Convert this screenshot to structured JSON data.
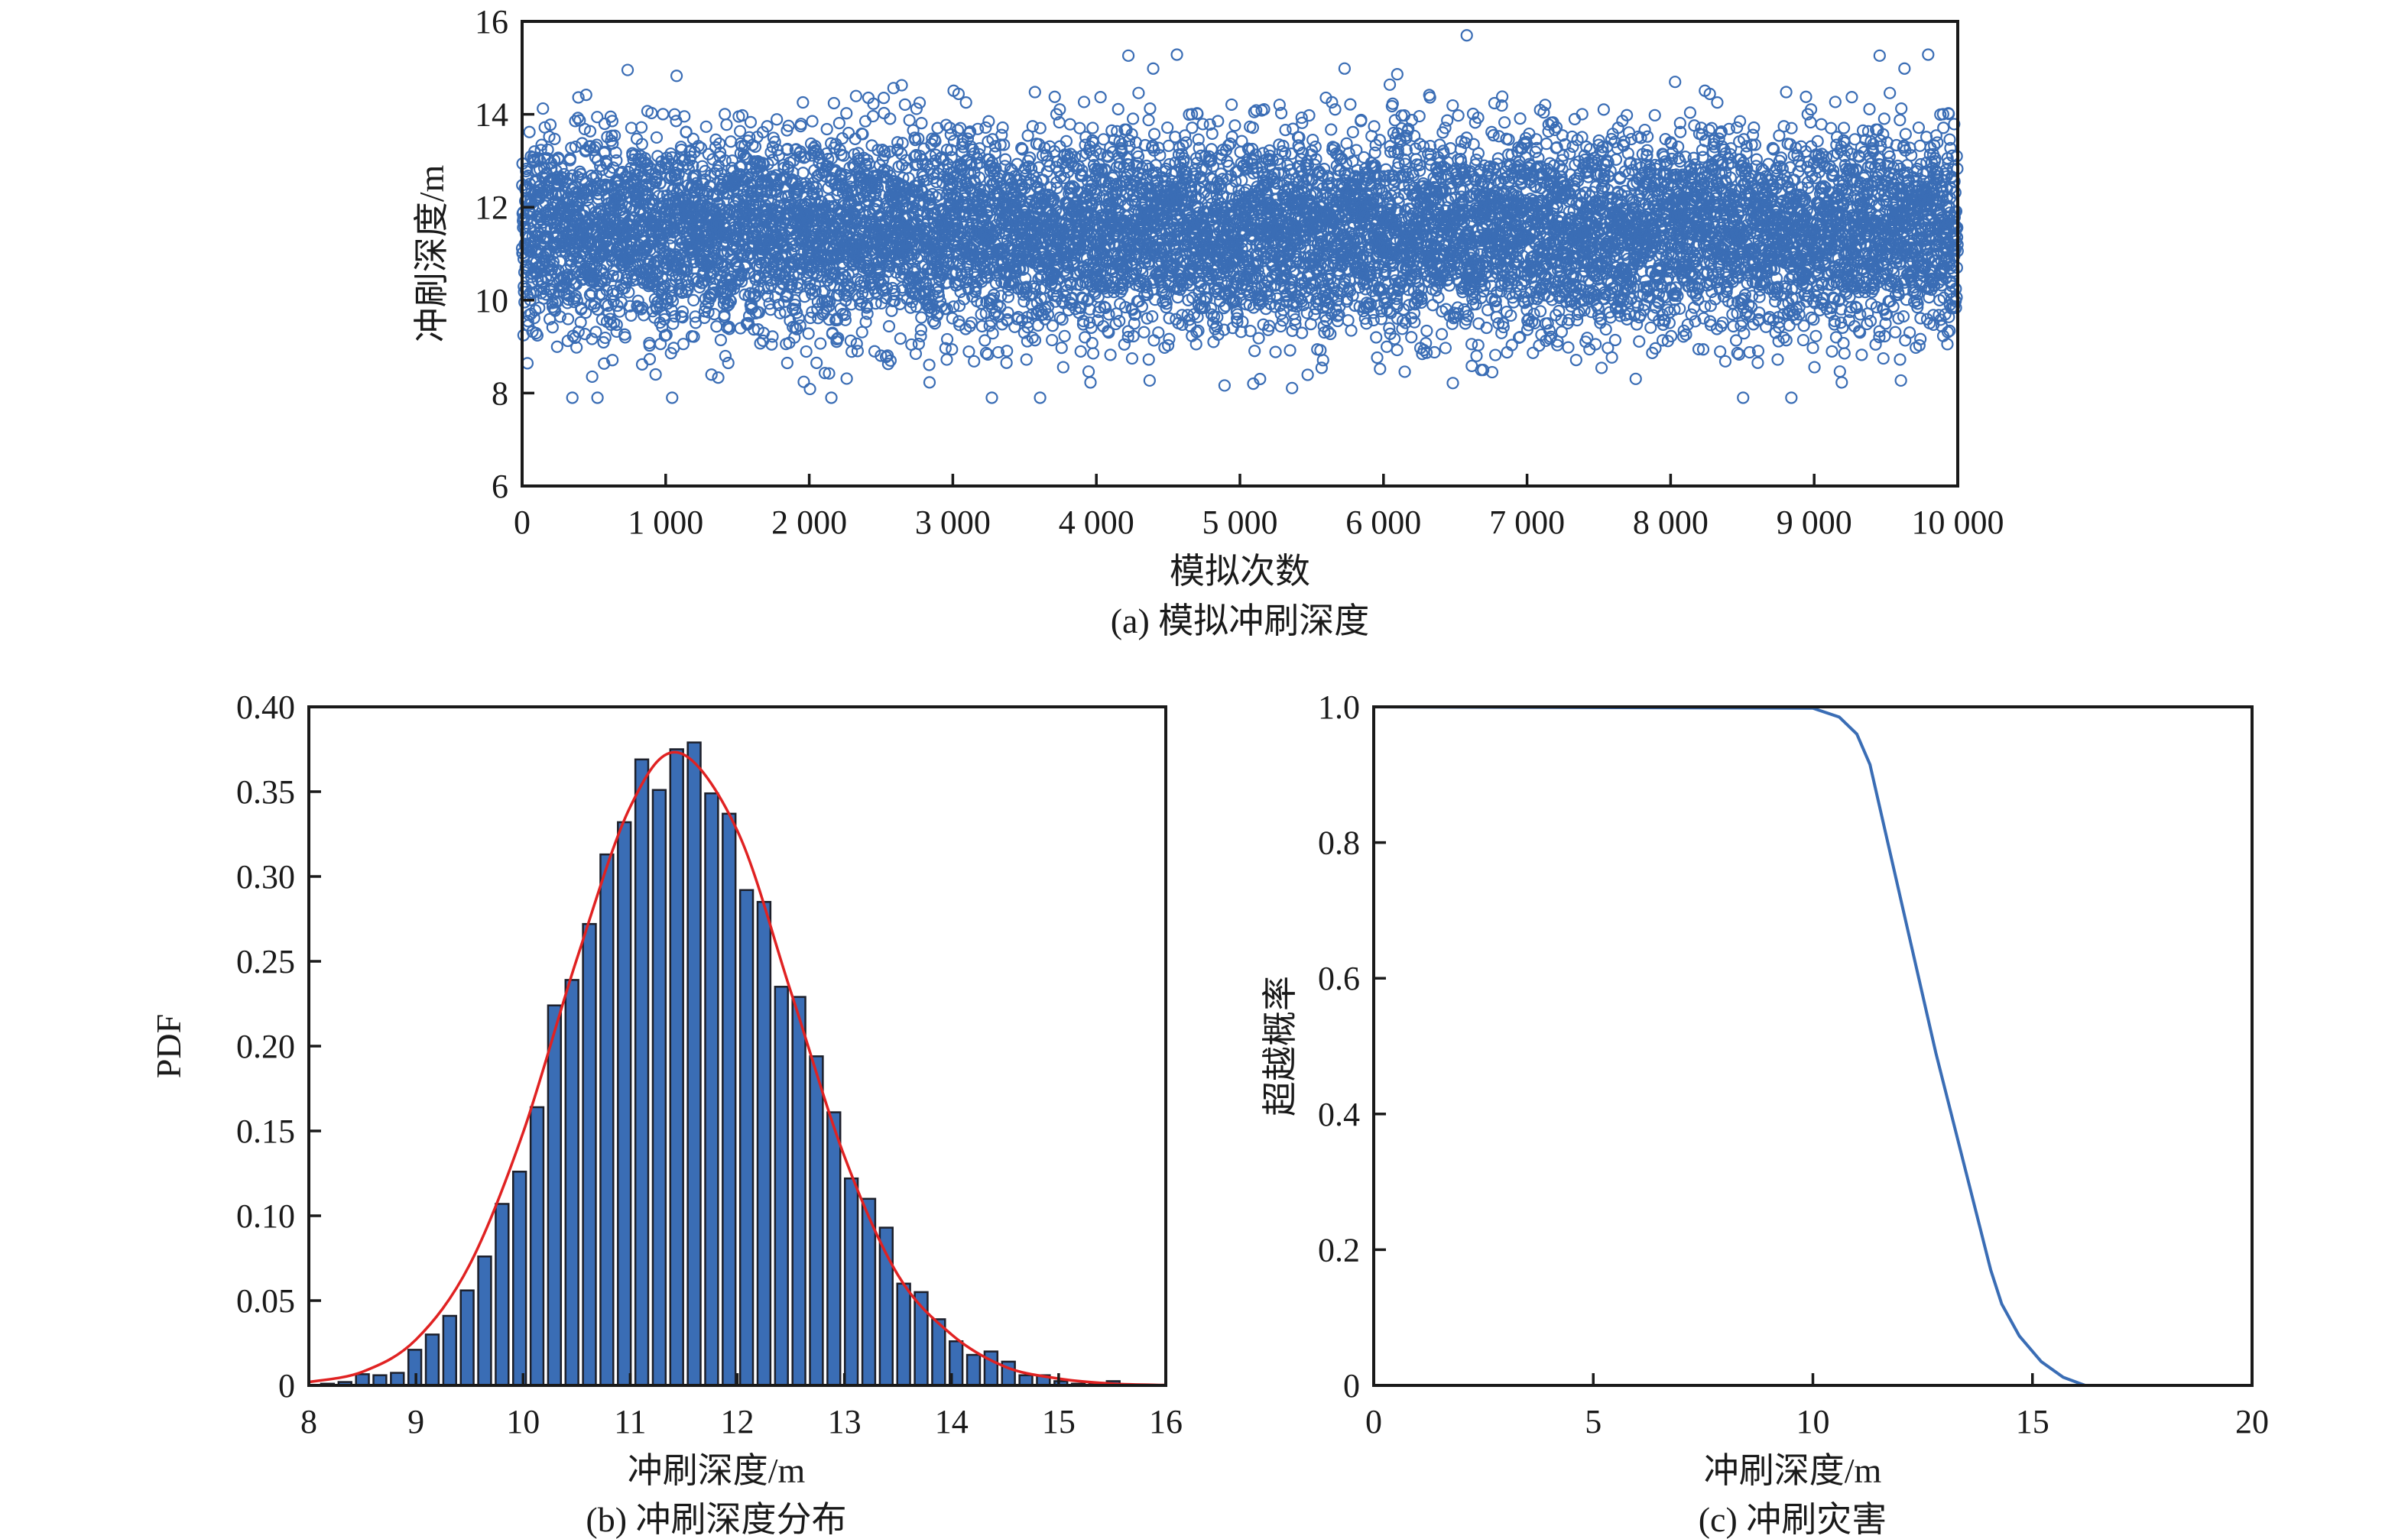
{
  "chart_data": [
    {
      "type": "scatter",
      "caption": "(a) 模拟冲刷深度",
      "xlabel": "模拟次数",
      "ylabel": "冲刷深度/m",
      "xlim": [
        0,
        10000
      ],
      "ylim": [
        6,
        16
      ],
      "xticks": [
        "0",
        "1 000",
        "2 000",
        "3 000",
        "4 000",
        "5 000",
        "6 000",
        "7 000",
        "8 000",
        "9 000",
        "10 000"
      ],
      "xtick_values": [
        0,
        1000,
        2000,
        3000,
        4000,
        5000,
        6000,
        7000,
        8000,
        9000,
        10000
      ],
      "yticks": [
        "6",
        "8",
        "10",
        "12",
        "14",
        "16"
      ],
      "ytick_values": [
        6,
        8,
        10,
        12,
        14,
        16
      ],
      "marker": "open-circle",
      "color": "#3a6db5",
      "n_points": 10000,
      "sample_distribution": {
        "mean": 11.45,
        "std": 1.07,
        "min": 7.9,
        "max": 15.7
      },
      "grid": false
    },
    {
      "type": "bar",
      "caption": "(b) 冲刷深度分布",
      "xlabel": "冲刷深度/m",
      "ylabel": "PDF",
      "xlim": [
        8,
        16
      ],
      "ylim": [
        0,
        0.4
      ],
      "xticks": [
        "8",
        "9",
        "10",
        "11",
        "12",
        "13",
        "14",
        "15",
        "16"
      ],
      "xtick_values": [
        8,
        9,
        10,
        11,
        12,
        13,
        14,
        15,
        16
      ],
      "yticks": [
        "0",
        "0.05",
        "0.10",
        "0.15",
        "0.20",
        "0.25",
        "0.30",
        "0.35",
        "0.40"
      ],
      "ytick_values": [
        0,
        0.05,
        0.1,
        0.15,
        0.2,
        0.25,
        0.3,
        0.35,
        0.4
      ],
      "bin_start": 8.1,
      "bin_width": 0.163,
      "values": [
        0.001,
        0.002,
        0.0066,
        0.006,
        0.0074,
        0.021,
        0.03,
        0.041,
        0.056,
        0.076,
        0.107,
        0.126,
        0.164,
        0.224,
        0.239,
        0.272,
        0.313,
        0.332,
        0.369,
        0.351,
        0.375,
        0.379,
        0.349,
        0.337,
        0.292,
        0.285,
        0.235,
        0.229,
        0.194,
        0.161,
        0.122,
        0.11,
        0.093,
        0.06,
        0.055,
        0.039,
        0.026,
        0.018,
        0.02,
        0.014,
        0.006,
        0.006,
        0.0025,
        0.001,
        0.001,
        0.0025
      ],
      "bar_color": "#3a6db5",
      "fit_curve": {
        "color": "#e02222",
        "x": [
          8,
          8.5,
          9,
          9.5,
          10,
          10.5,
          11,
          11.45,
          12,
          12.5,
          13,
          13.5,
          14,
          14.5,
          15,
          15.5,
          16
        ],
        "y": [
          0.002,
          0.008,
          0.027,
          0.071,
          0.149,
          0.251,
          0.341,
          0.373,
          0.327,
          0.232,
          0.135,
          0.065,
          0.03,
          0.011,
          0.004,
          0.001,
          0.0002
        ]
      },
      "grid": false
    },
    {
      "type": "line",
      "caption": "(c) 冲刷灾害",
      "xlabel": "冲刷深度/m",
      "ylabel": "超越概率",
      "xlim": [
        0,
        20
      ],
      "ylim": [
        0,
        1.0
      ],
      "xticks": [
        "0",
        "5",
        "10",
        "15",
        "20"
      ],
      "xtick_values": [
        0,
        5,
        10,
        15,
        20
      ],
      "yticks": [
        "0",
        "0.2",
        "0.4",
        "0.6",
        "0.8",
        "1.0"
      ],
      "ytick_values": [
        0,
        0.2,
        0.4,
        0.6,
        0.8,
        1.0
      ],
      "color": "#3a6db5",
      "x": [
        0,
        10,
        10.6,
        11,
        11.3,
        12.8,
        14.05,
        14.3,
        14.7,
        15.2,
        15.7,
        16.2,
        18
      ],
      "y": [
        1.0,
        0.998,
        0.985,
        0.96,
        0.915,
        0.49,
        0.17,
        0.12,
        0.073,
        0.035,
        0.012,
        0.0,
        0.0
      ],
      "grid": false
    }
  ]
}
